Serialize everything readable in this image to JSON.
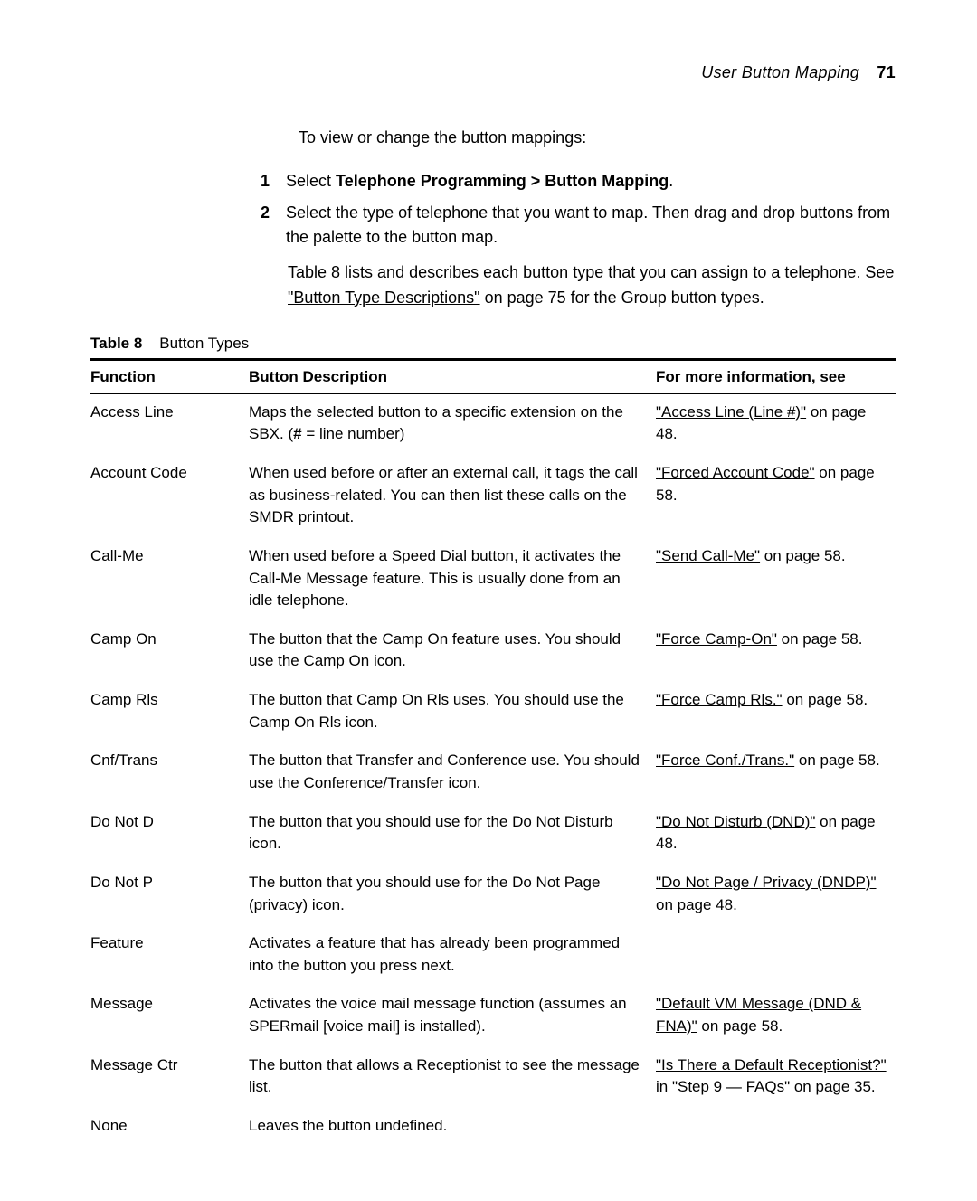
{
  "runningHead": {
    "title": "User Button Mapping",
    "page": "71"
  },
  "introLine": "To view or change the button mappings:",
  "steps": [
    {
      "n": "1",
      "html": "Select <b>Telephone Programming &gt; Button Mapping</b>."
    },
    {
      "n": "2",
      "html": "Select the type of telephone that you want to map. Then drag and drop buttons from the palette to the button map."
    }
  ],
  "noteHtml": "<span>Table 8 lists and describes each button type that you can assign to a telephone. See </span><span class=\"xref\">\"Button Type Descriptions\"</span><span> on page 75 for the Group button types.</span>",
  "tableCaption": {
    "label": "Table  8",
    "title": "Button Types"
  },
  "columns": [
    "Function",
    "Button Description",
    "For more information, see"
  ],
  "rows": [
    {
      "func": "Access Line",
      "desc": "Maps the selected button to a specific extension on the SBX. (<span class=\"num-hash\">#</span> = line number)",
      "see": "<span class=\"xref\">\"Access Line (Line #)\"</span> on page 48."
    },
    {
      "func": "Account Code",
      "desc": "When used before or after an external call, it tags the call as business-related. You can then list these calls on the SMDR printout.",
      "see": "<span class=\"xref\">\"Forced Account Code\"</span> on page 58."
    },
    {
      "func": "Call-Me",
      "desc": "When used before a Speed Dial button, it activates the Call-Me Message feature. This is usually done from an idle telephone.",
      "see": "<span class=\"xref\">\"Send Call-Me\"</span> on page 58."
    },
    {
      "func": "Camp On",
      "desc": "The button that the Camp On feature uses. You should use the Camp On icon.",
      "see": "<span class=\"xref\">\"Force Camp-On\"</span> on page 58."
    },
    {
      "func": "Camp Rls",
      "desc": "The button that Camp On Rls uses. You should use the Camp On Rls icon.",
      "see": "<span class=\"xref\">\"Force Camp Rls.\"</span> on page 58."
    },
    {
      "func": "Cnf/Trans",
      "desc": "The button that Transfer and Conference use. You should use the Conference/Transfer icon.",
      "see": "<span class=\"xref\">\"Force Conf./Trans.\"</span> on page 58."
    },
    {
      "func": "Do Not D",
      "desc": "The button that you should use for the Do Not Disturb icon.",
      "see": "<span class=\"xref\">\"Do Not Disturb (DND)\"</span> on page 48."
    },
    {
      "func": "Do Not P",
      "desc": "The button that you should use for the Do Not Page (privacy) icon.",
      "see": "<span class=\"xref\">\"Do Not Page / Privacy (DNDP)\"</span> on page 48."
    },
    {
      "func": "Feature",
      "desc": "Activates a feature that has already been programmed into the button you press next.",
      "see": ""
    },
    {
      "func": "Message",
      "desc": "Activates the voice mail message function (assumes an SPERmail [voice mail] is installed).",
      "see": "<span class=\"xref\">\"Default VM Message (DND &amp; FNA)\"</span> on page 58."
    },
    {
      "func": "Message Ctr",
      "desc": "The button that allows a Receptionist to see the message list.",
      "see": "<span class=\"xref\">\"Is There a Default Receptionist?\"</span> in \"Step 9 — FAQs\" on page 35."
    },
    {
      "func": "None",
      "desc": "Leaves the button undefined.",
      "see": ""
    }
  ]
}
